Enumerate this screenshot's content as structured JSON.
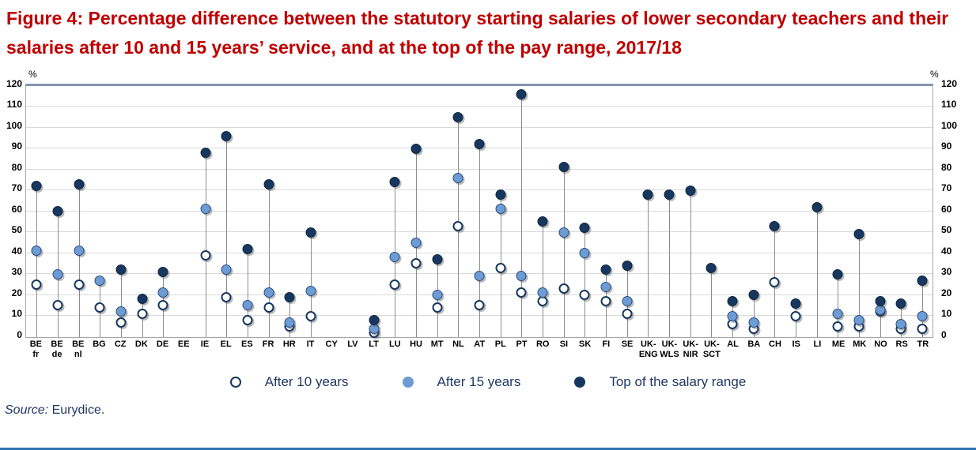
{
  "title": "Figure 4: Percentage difference between the statutory starting salaries of lower secondary teachers and their salaries after 10 and 15 years’ service, and at the top of the pay range, 2017/18",
  "source": {
    "prefix": "Source:",
    "text": " Eurydice."
  },
  "axis": {
    "unit_label": "%",
    "ticks": [
      0,
      10,
      20,
      30,
      40,
      50,
      60,
      70,
      80,
      90,
      100,
      110,
      120
    ]
  },
  "colors": {
    "title": "#C00000",
    "navy_text": "#1F3864",
    "marker_after10_fill": "#FFFFFF",
    "marker_after10_stroke": "#17375E",
    "marker_after15": "#6D9BD3",
    "marker_top": "#17375E",
    "gridline": "#D9D9D9",
    "stem": "#8C8C8C",
    "plot_border": "#A6A6A6",
    "plot_border_top": "#8496B0",
    "bottom_rule": "#2E74B5"
  },
  "chart_data": {
    "type": "scatter",
    "title": "Percentage difference between statutory starting salaries and salaries after 10 and 15 years’ service, and at the top of the pay range, 2017/18",
    "ylabel": "%",
    "ylim": [
      0,
      120
    ],
    "grid": true,
    "legend_position": "bottom",
    "categories": [
      "BE fr",
      "BE de",
      "BE nl",
      "BG",
      "CZ",
      "DK",
      "DE",
      "EE",
      "IE",
      "EL",
      "ES",
      "FR",
      "HR",
      "IT",
      "CY",
      "LV",
      "LT",
      "LU",
      "HU",
      "MT",
      "NL",
      "AT",
      "PL",
      "PT",
      "RO",
      "SI",
      "SK",
      "FI",
      "SE",
      "UK-ENG",
      "UK-WLS",
      "UK-NIR",
      "UK-SCT",
      "AL",
      "BA",
      "CH",
      "IS",
      "LI",
      "ME",
      "MK",
      "NO",
      "RS",
      "TR"
    ],
    "x_labels": [
      [
        "BE",
        "fr"
      ],
      [
        "BE",
        "de"
      ],
      [
        "BE",
        "nl"
      ],
      [
        "BG",
        ""
      ],
      [
        "CZ",
        ""
      ],
      [
        "DK",
        ""
      ],
      [
        "DE",
        ""
      ],
      [
        "EE",
        ""
      ],
      [
        "IE",
        ""
      ],
      [
        "EL",
        ""
      ],
      [
        "ES",
        ""
      ],
      [
        "FR",
        ""
      ],
      [
        "HR",
        ""
      ],
      [
        "IT",
        ""
      ],
      [
        "CY",
        ""
      ],
      [
        "LV",
        ""
      ],
      [
        "LT",
        ""
      ],
      [
        "LU",
        ""
      ],
      [
        "HU",
        ""
      ],
      [
        "MT",
        ""
      ],
      [
        "NL",
        ""
      ],
      [
        "AT",
        ""
      ],
      [
        "PL",
        ""
      ],
      [
        "PT",
        ""
      ],
      [
        "RO",
        ""
      ],
      [
        "SI",
        ""
      ],
      [
        "SK",
        ""
      ],
      [
        "FI",
        ""
      ],
      [
        "SE",
        ""
      ],
      [
        "UK-",
        "ENG"
      ],
      [
        "UK-",
        "WLS"
      ],
      [
        "UK-",
        "NIR"
      ],
      [
        "UK-",
        "SCT"
      ],
      [
        "AL",
        ""
      ],
      [
        "BA",
        ""
      ],
      [
        "CH",
        ""
      ],
      [
        "IS",
        ""
      ],
      [
        "LI",
        ""
      ],
      [
        "ME",
        ""
      ],
      [
        "MK",
        ""
      ],
      [
        "NO",
        ""
      ],
      [
        "RS",
        ""
      ],
      [
        "TR",
        ""
      ]
    ],
    "series": [
      {
        "name": "After 10 years",
        "values": [
          25,
          15,
          25,
          14,
          7,
          11,
          15,
          null,
          39,
          19,
          8,
          14,
          5,
          10,
          null,
          null,
          2,
          25,
          35,
          14,
          53,
          15,
          33,
          21,
          17,
          23,
          20,
          17,
          11,
          null,
          null,
          null,
          null,
          6,
          4,
          26,
          10,
          null,
          5,
          5,
          12,
          4,
          4
        ]
      },
      {
        "name": "After 15 years",
        "values": [
          41,
          30,
          41,
          27,
          12,
          null,
          21,
          null,
          61,
          32,
          15,
          21,
          7,
          22,
          null,
          null,
          4,
          38,
          45,
          20,
          76,
          29,
          61,
          29,
          21,
          50,
          40,
          24,
          17,
          null,
          null,
          null,
          null,
          10,
          7,
          null,
          null,
          null,
          11,
          8,
          13,
          6,
          10
        ]
      },
      {
        "name": "Top of the salary range",
        "values": [
          72,
          60,
          73,
          null,
          32,
          18,
          31,
          null,
          88,
          96,
          42,
          73,
          19,
          50,
          null,
          null,
          8,
          74,
          90,
          37,
          105,
          92,
          68,
          116,
          55,
          81,
          52,
          32,
          34,
          68,
          68,
          70,
          33,
          17,
          20,
          53,
          16,
          62,
          30,
          49,
          17,
          16,
          27
        ]
      }
    ]
  }
}
